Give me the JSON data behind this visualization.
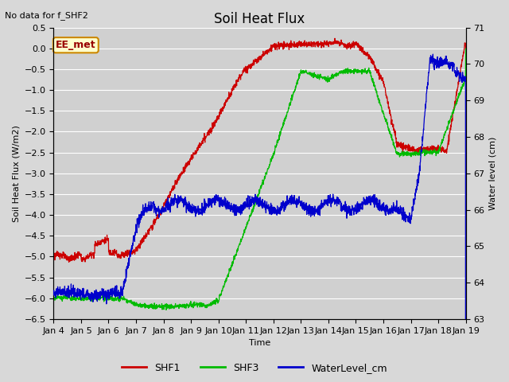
{
  "title": "Soil Heat Flux",
  "title_note": "No data for f_SHF2",
  "ylabel_left": "Soil Heat Flux (W/m2)",
  "ylabel_right": "Water level (cm)",
  "xlabel": "Time",
  "ylim_left": [
    -6.5,
    0.5
  ],
  "ylim_right": [
    63.0,
    71.0
  ],
  "yticks_left": [
    0.5,
    0.0,
    -0.5,
    -1.0,
    -1.5,
    -2.0,
    -2.5,
    -3.0,
    -3.5,
    -4.0,
    -4.5,
    -5.0,
    -5.5,
    -6.0,
    -6.5
  ],
  "yticks_right": [
    71.0,
    70.0,
    69.0,
    68.0,
    67.0,
    66.0,
    65.0,
    64.0,
    63.0
  ],
  "xtick_labels": [
    "Jan 4",
    "Jan 5",
    "Jan 6",
    "Jan 7",
    "Jan 8",
    "Jan 9",
    "Jan 10",
    "Jan 11",
    "Jan 12",
    "Jan 13",
    "Jan 14",
    "Jan 15",
    "Jan 16",
    "Jan 17",
    "Jan 18",
    "Jan 19"
  ],
  "fig_bg_color": "#d8d8d8",
  "plot_bg_color": "#d0d0d0",
  "grid_color": "#ffffff",
  "shf1_color": "#cc0000",
  "shf3_color": "#00bb00",
  "wl_color": "#0000cc",
  "legend_entries": [
    {
      "label": "SHF1",
      "color": "#cc0000"
    },
    {
      "label": "SHF3",
      "color": "#00bb00"
    },
    {
      "label": "WaterLevel_cm",
      "color": "#0000cc"
    }
  ]
}
